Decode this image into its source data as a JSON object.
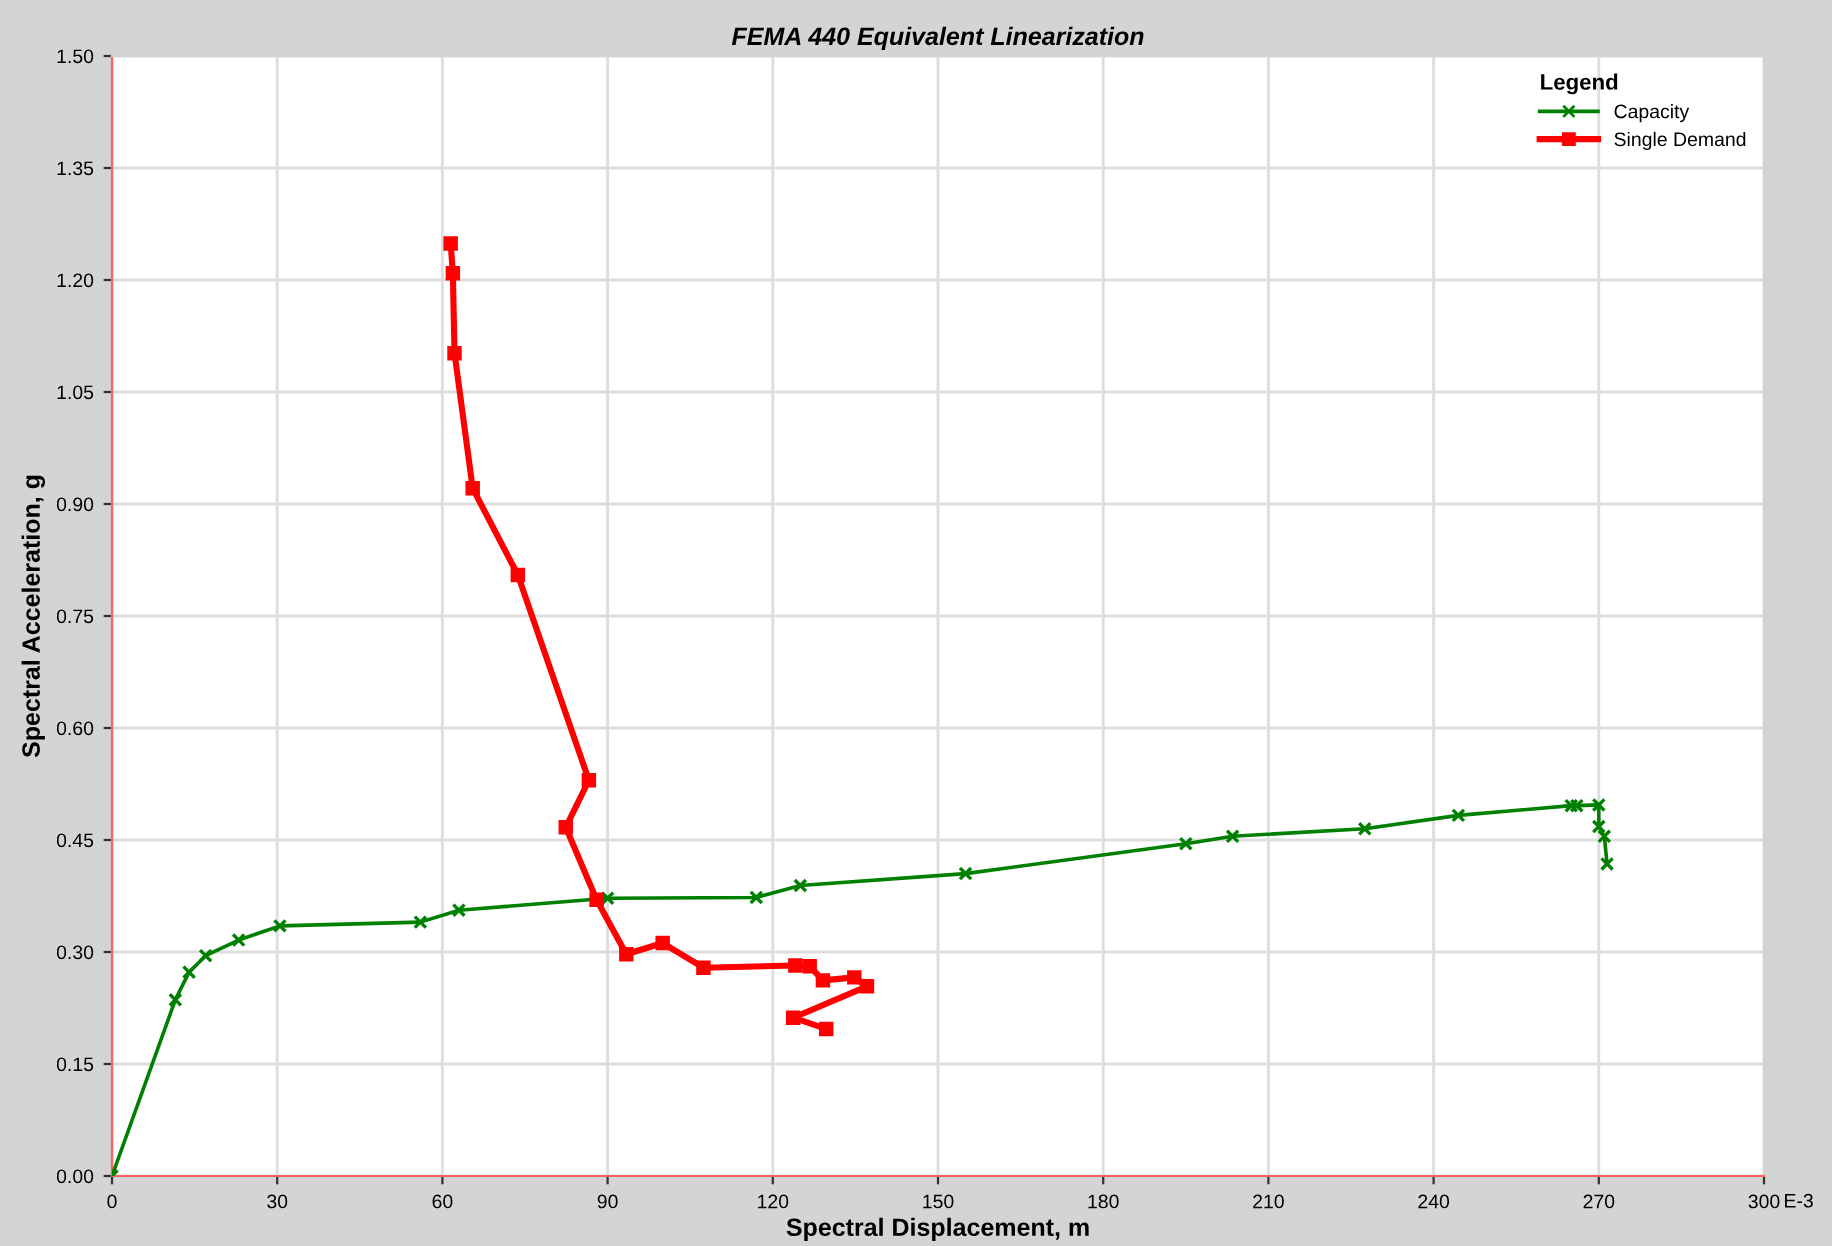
{
  "chart_data": {
    "type": "line",
    "title": "FEMA 440 Equivalent Linearization",
    "xlabel": "Spectral Displacement, m",
    "ylabel": "Spectral Acceleration, g",
    "legend_title": "Legend",
    "annotations": [
      "E-3"
    ],
    "xlim": [
      0,
      300
    ],
    "xticks": [
      0,
      30,
      60,
      90,
      120,
      150,
      180,
      210,
      240,
      270,
      300
    ],
    "ylim": [
      0,
      1.5
    ],
    "yticks": [
      {
        "value": 0,
        "label": "0.00"
      },
      {
        "value": 0.15,
        "label": "0.15"
      },
      {
        "value": 0.3,
        "label": "0.30"
      },
      {
        "value": 0.45,
        "label": "0.45"
      },
      {
        "value": 0.6,
        "label": "0.60"
      },
      {
        "value": 0.75,
        "label": "0.75"
      },
      {
        "value": 0.9,
        "label": "0.90"
      },
      {
        "value": 1.05,
        "label": "1.05"
      },
      {
        "value": 1.2,
        "label": "1.20"
      },
      {
        "value": 1.35,
        "label": "1.35"
      },
      {
        "value": 1.5,
        "label": "1.50"
      }
    ],
    "grid": true,
    "legend": "top right",
    "series": [
      {
        "name": "Capacity",
        "color": "#008000",
        "marker": "cross",
        "x": [
          0,
          11.5,
          14,
          17,
          23,
          30.5,
          56,
          63,
          90,
          117,
          125,
          155,
          195,
          203.5,
          227.5,
          244.5,
          265,
          266,
          270,
          270,
          271,
          271.5
        ],
        "values": [
          0,
          0.236,
          0.273,
          0.295,
          0.316,
          0.335,
          0.34,
          0.356,
          0.372,
          0.373,
          0.389,
          0.405,
          0.445,
          0.455,
          0.465,
          0.483,
          0.496,
          0.496,
          0.497,
          0.468,
          0.455,
          0.418
        ]
      },
      {
        "name": "Single Demand",
        "color": "#ff0000",
        "marker": "square",
        "x": [
          61.5,
          61.9,
          62.2,
          65.5,
          73.7,
          86.6,
          82.4,
          88,
          93.4,
          100,
          107.4,
          124.1,
          126.7,
          129.1,
          134.8,
          137.1,
          123.7,
          129.7
        ],
        "values": [
          1.249,
          1.209,
          1.102,
          0.921,
          0.805,
          0.53,
          0.467,
          0.37,
          0.297,
          0.312,
          0.279,
          0.282,
          0.281,
          0.262,
          0.266,
          0.254,
          0.212,
          0.197
        ]
      }
    ]
  }
}
